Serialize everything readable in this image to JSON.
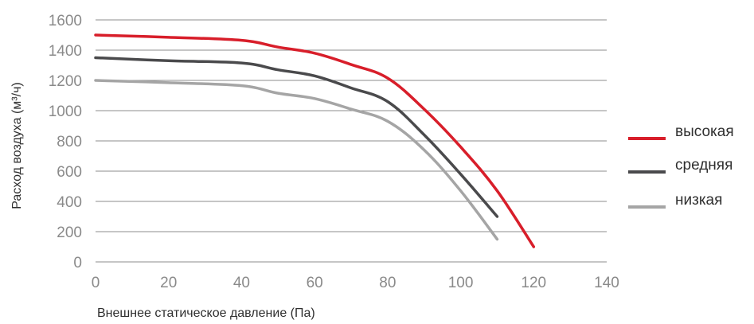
{
  "chart_data": {
    "type": "line",
    "xlabel": "Внешнее статическое давление (Па)",
    "ylabel": "Расход воздуха  (м³/ч)",
    "xlim": [
      0,
      140
    ],
    "ylim": [
      0,
      1600
    ],
    "x_ticks": [
      "0",
      "20",
      "40",
      "60",
      "80",
      "100",
      "120",
      "140"
    ],
    "y_ticks": [
      "0",
      "200",
      "400",
      "600",
      "800",
      "1000",
      "1200",
      "1400",
      "1600"
    ],
    "grid": "horizontal",
    "legend_position": "right",
    "series": [
      {
        "name": "высокая",
        "color": "#d81e2a",
        "x": [
          0,
          20,
          40,
          50,
          60,
          70,
          80,
          90,
          100,
          110,
          120
        ],
        "y": [
          1500,
          1485,
          1465,
          1420,
          1380,
          1305,
          1215,
          1010,
          760,
          470,
          100
        ]
      },
      {
        "name": "средняя",
        "color": "#4a4a4c",
        "x": [
          0,
          20,
          40,
          50,
          60,
          70,
          80,
          90,
          100,
          110
        ],
        "y": [
          1350,
          1330,
          1315,
          1270,
          1230,
          1150,
          1060,
          840,
          580,
          300
        ]
      },
      {
        "name": "низкая",
        "color": "#a5a5a5",
        "x": [
          0,
          20,
          40,
          50,
          60,
          70,
          80,
          90,
          100,
          110
        ],
        "y": [
          1200,
          1185,
          1165,
          1115,
          1080,
          1010,
          930,
          740,
          470,
          150
        ]
      }
    ]
  }
}
